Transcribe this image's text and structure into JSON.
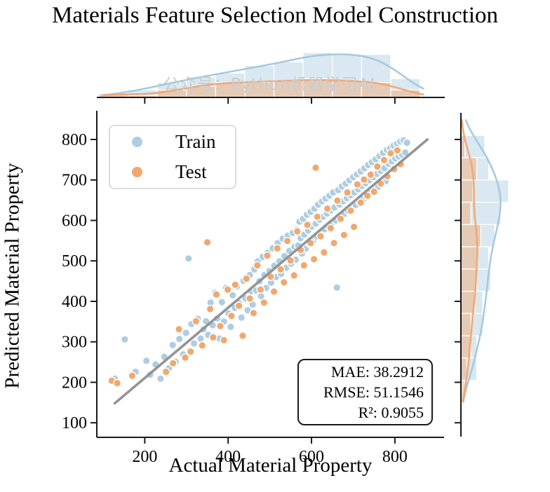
{
  "title": "Materials Feature Selection Model Construction",
  "watermark": "公众号：Python机器学习AI",
  "axes": {
    "xlabel": "Actual Material Property",
    "ylabel": "Predicted Material Property",
    "x_ticks": [
      200,
      400,
      600,
      800
    ],
    "y_ticks": [
      100,
      200,
      300,
      400,
      500,
      600,
      700,
      800
    ],
    "xlim": [
      85,
      918
    ],
    "ylim": [
      64,
      871
    ],
    "grid": false
  },
  "legend": {
    "position": "upper-left",
    "items": [
      {
        "label": "Train",
        "color": "#AECDE1"
      },
      {
        "label": "Test",
        "color": "#F1A86F"
      }
    ]
  },
  "stats": {
    "lines": [
      "MAE: 38.2912",
      "RMSE: 51.1546",
      "R²: 0.9055"
    ]
  },
  "colors": {
    "train": "#AECDE1",
    "test": "#F1A86F",
    "train_kde": "#A3C7DC",
    "test_kde": "#F0A571",
    "fit_line": "#8F8F8F",
    "spine": "#1a1a1a",
    "marker_edge": "#ffffff",
    "watermark": "#c9ccd0"
  },
  "chart_data": {
    "type": "scatter",
    "title": "Materials Feature Selection Model Construction",
    "xlabel": "Actual Material Property",
    "ylabel": "Predicted Material Property",
    "xlim": [
      85,
      918
    ],
    "ylim": [
      64,
      871
    ],
    "legend_position": "upper-left",
    "marginals": {
      "style": "histogram+kde",
      "top_axis": "x",
      "right_axis": "y",
      "x_bin_width": 70,
      "y_bin_width": 55,
      "kde_bandwidth_x": 55,
      "kde_bandwidth_y": 50
    },
    "fit_line": {
      "x1": 128,
      "y1": 148,
      "x2": 878,
      "y2": 800
    },
    "series": [
      {
        "name": "Train",
        "color": "#AECDE1",
        "points": [
          [
            128,
            209
          ],
          [
            152,
            306
          ],
          [
            178,
            226
          ],
          [
            204,
            253
          ],
          [
            213,
            219
          ],
          [
            226,
            244
          ],
          [
            238,
            209
          ],
          [
            247,
            263
          ],
          [
            258,
            235
          ],
          [
            267,
            292
          ],
          [
            274,
            251
          ],
          [
            283,
            307
          ],
          [
            292,
            269
          ],
          [
            299,
            322
          ],
          [
            305,
            506
          ],
          [
            312,
            344
          ],
          [
            318,
            296
          ],
          [
            327,
            357
          ],
          [
            334,
            308
          ],
          [
            341,
            331
          ],
          [
            347,
            351
          ],
          [
            352,
            317
          ],
          [
            358,
            397
          ],
          [
            363,
            341
          ],
          [
            369,
            421
          ],
          [
            374,
            358
          ],
          [
            379,
            308
          ],
          [
            385,
            398
          ],
          [
            390,
            350
          ],
          [
            395,
            433
          ],
          [
            401,
            370
          ],
          [
            406,
            337
          ],
          [
            411,
            415
          ],
          [
            416,
            384
          ],
          [
            421,
            437
          ],
          [
            427,
            395
          ],
          [
            432,
            360
          ],
          [
            437,
            451
          ],
          [
            442,
            407
          ],
          [
            447,
            378
          ],
          [
            452,
            465
          ],
          [
            456,
            425
          ],
          [
            459,
            392
          ],
          [
            463,
            479
          ],
          [
            467,
            427
          ],
          [
            471,
            499
          ],
          [
            475,
            450
          ],
          [
            479,
            413
          ],
          [
            483,
            510
          ],
          [
            487,
            465
          ],
          [
            491,
            433
          ],
          [
            495,
            520
          ],
          [
            499,
            475
          ],
          [
            503,
            446
          ],
          [
            507,
            531
          ],
          [
            511,
            488
          ],
          [
            515,
            460
          ],
          [
            519,
            544
          ],
          [
            523,
            499
          ],
          [
            527,
            468
          ],
          [
            531,
            555
          ],
          [
            535,
            512
          ],
          [
            539,
            483
          ],
          [
            543,
            562
          ],
          [
            547,
            525
          ],
          [
            551,
            493
          ],
          [
            555,
            569
          ],
          [
            559,
            535
          ],
          [
            562,
            503
          ],
          [
            565,
            577
          ],
          [
            568,
            538
          ],
          [
            571,
            597
          ],
          [
            574,
            556
          ],
          [
            577,
            518
          ],
          [
            580,
            604
          ],
          [
            583,
            565
          ],
          [
            586,
            530
          ],
          [
            589,
            614
          ],
          [
            592,
            575
          ],
          [
            595,
            543
          ],
          [
            598,
            621
          ],
          [
            601,
            585
          ],
          [
            604,
            550
          ],
          [
            607,
            629
          ],
          [
            610,
            592
          ],
          [
            613,
            560
          ],
          [
            616,
            639
          ],
          [
            619,
            602
          ],
          [
            622,
            570
          ],
          [
            625,
            647
          ],
          [
            628,
            609
          ],
          [
            631,
            578
          ],
          [
            634,
            654
          ],
          [
            637,
            617
          ],
          [
            640,
            586
          ],
          [
            643,
            661
          ],
          [
            646,
            625
          ],
          [
            649,
            593
          ],
          [
            652,
            669
          ],
          [
            655,
            632
          ],
          [
            658,
            600
          ],
          [
            661,
            434
          ],
          [
            664,
            675
          ],
          [
            667,
            639
          ],
          [
            670,
            608
          ],
          [
            673,
            684
          ],
          [
            676,
            647
          ],
          [
            679,
            616
          ],
          [
            682,
            691
          ],
          [
            685,
            655
          ],
          [
            688,
            623
          ],
          [
            691,
            699
          ],
          [
            694,
            662
          ],
          [
            697,
            630
          ],
          [
            700,
            707
          ],
          [
            703,
            669
          ],
          [
            706,
            638
          ],
          [
            709,
            714
          ],
          [
            712,
            677
          ],
          [
            715,
            646
          ],
          [
            718,
            721
          ],
          [
            721,
            685
          ],
          [
            724,
            652
          ],
          [
            727,
            729
          ],
          [
            730,
            692
          ],
          [
            733,
            660
          ],
          [
            736,
            737
          ],
          [
            739,
            699
          ],
          [
            742,
            668
          ],
          [
            745,
            744
          ],
          [
            748,
            707
          ],
          [
            751,
            675
          ],
          [
            754,
            751
          ],
          [
            757,
            715
          ],
          [
            760,
            683
          ],
          [
            763,
            759
          ],
          [
            766,
            722
          ],
          [
            769,
            690
          ],
          [
            772,
            767
          ],
          [
            775,
            729
          ],
          [
            778,
            697
          ],
          [
            781,
            774
          ],
          [
            785,
            740
          ],
          [
            789,
            778
          ],
          [
            793,
            746
          ],
          [
            797,
            785
          ],
          [
            801,
            753
          ],
          [
            805,
            790
          ],
          [
            809,
            758
          ],
          [
            813,
            795
          ],
          [
            817,
            763
          ],
          [
            821,
            798
          ],
          [
            825,
            768
          ],
          [
            829,
            792
          ]
        ]
      },
      {
        "name": "Test",
        "color": "#F1A86F",
        "points": [
          [
            121,
            204
          ],
          [
            134,
            198
          ],
          [
            170,
            216
          ],
          [
            251,
            226
          ],
          [
            268,
            247
          ],
          [
            282,
            331
          ],
          [
            297,
            261
          ],
          [
            310,
            276
          ],
          [
            323,
            351
          ],
          [
            338,
            291
          ],
          [
            350,
            546
          ],
          [
            357,
            381
          ],
          [
            364,
            311
          ],
          [
            372,
            417
          ],
          [
            381,
            339
          ],
          [
            390,
            304
          ],
          [
            399,
            429
          ],
          [
            408,
            364
          ],
          [
            417,
            441
          ],
          [
            426,
            389
          ],
          [
            435,
            315
          ],
          [
            444,
            456
          ],
          [
            452,
            407
          ],
          [
            461,
            371
          ],
          [
            470,
            489
          ],
          [
            478,
            429
          ],
          [
            486,
            397
          ],
          [
            494,
            513
          ],
          [
            502,
            461
          ],
          [
            510,
            424
          ],
          [
            518,
            531
          ],
          [
            526,
            479
          ],
          [
            534,
            447
          ],
          [
            542,
            549
          ],
          [
            550,
            501
          ],
          [
            558,
            464
          ],
          [
            566,
            573
          ],
          [
            574,
            527
          ],
          [
            582,
            489
          ],
          [
            590,
            589
          ],
          [
            598,
            544
          ],
          [
            606,
            504
          ],
          [
            610,
            730
          ],
          [
            614,
            609
          ],
          [
            622,
            561
          ],
          [
            630,
            521
          ],
          [
            638,
            629
          ],
          [
            646,
            581
          ],
          [
            654,
            544
          ],
          [
            662,
            649
          ],
          [
            670,
            604
          ],
          [
            678,
            564
          ],
          [
            686,
            669
          ],
          [
            694,
            624
          ],
          [
            702,
            584
          ],
          [
            710,
            689
          ],
          [
            718,
            644
          ],
          [
            726,
            701
          ],
          [
            734,
            661
          ],
          [
            742,
            713
          ],
          [
            750,
            671
          ],
          [
            758,
            733
          ],
          [
            766,
            691
          ],
          [
            774,
            749
          ],
          [
            782,
            709
          ],
          [
            790,
            766
          ],
          [
            798,
            727
          ],
          [
            806,
            773
          ],
          [
            814,
            739
          ]
        ]
      }
    ]
  }
}
